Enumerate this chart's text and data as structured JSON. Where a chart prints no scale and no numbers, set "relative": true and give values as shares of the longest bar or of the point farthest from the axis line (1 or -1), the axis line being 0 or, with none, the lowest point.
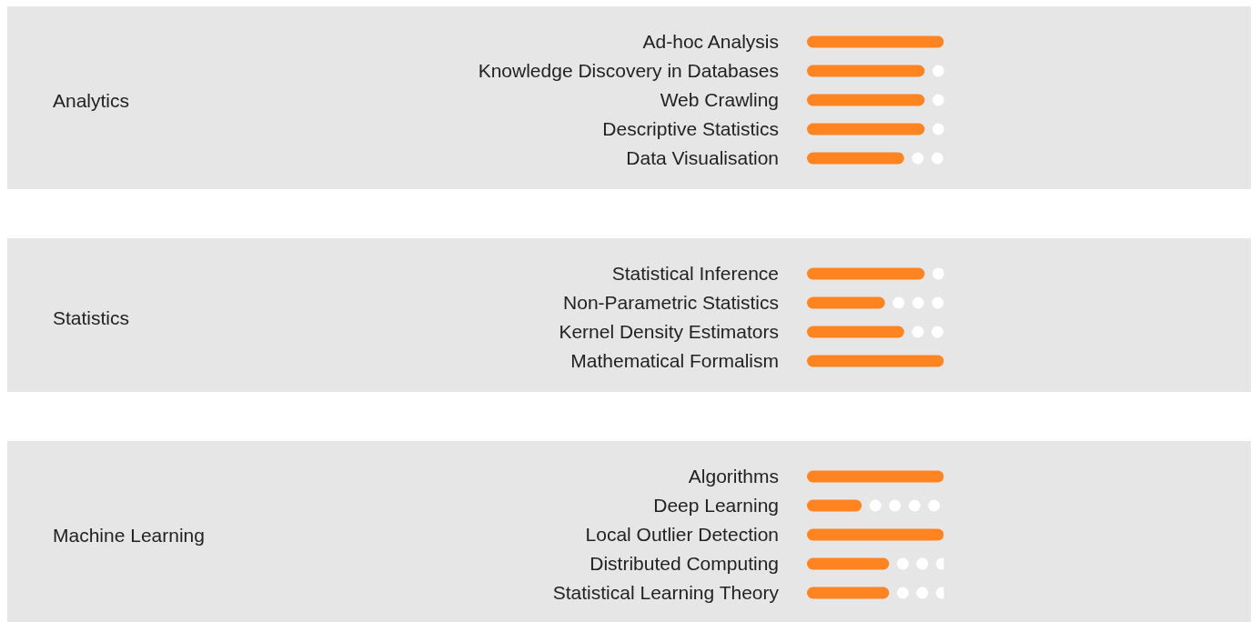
{
  "chart_data": [
    {
      "type": "bar",
      "orientation": "horizontal",
      "relative": true,
      "ylabel": "Analytics",
      "categories": [
        "Ad-hoc Analysis",
        "Knowledge Discovery in Databases",
        "Web Crawling",
        "Descriptive Statistics",
        "Data Visualisation"
      ],
      "values": [
        1,
        0.86,
        0.86,
        0.86,
        0.71
      ],
      "color": "#fd8421"
    },
    {
      "type": "bar",
      "orientation": "horizontal",
      "relative": true,
      "ylabel": "Statistics",
      "categories": [
        "Statistical Inference",
        "Non-Parametric Statistics",
        "Kernel Density Estimators",
        "Mathematical Formalism"
      ],
      "values": [
        0.86,
        0.57,
        0.71,
        1
      ],
      "color": "#fd8421"
    },
    {
      "type": "bar",
      "orientation": "horizontal",
      "relative": true,
      "ylabel": "Machine Learning",
      "categories": [
        "Algorithms",
        "Deep Learning",
        "Local Outlier Detection",
        "Distributed Computing",
        "Statistical Learning Theory"
      ],
      "values": [
        1,
        0.4,
        1,
        0.6,
        0.6
      ],
      "color": "#fd8421"
    }
  ]
}
